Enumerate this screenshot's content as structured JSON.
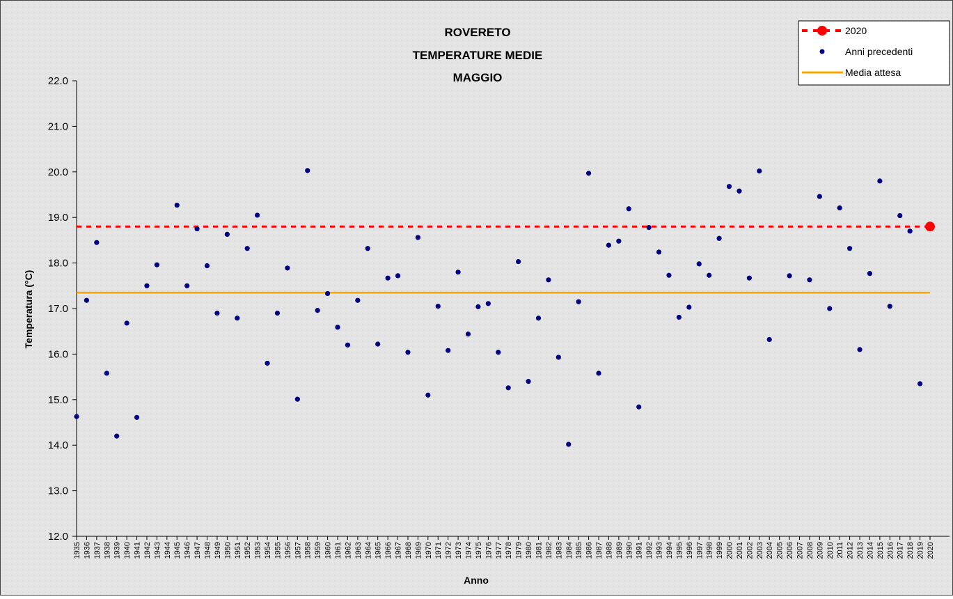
{
  "chart_data": {
    "type": "scatter",
    "title_lines": [
      "ROVERETO",
      "TEMPERATURE MEDIE",
      "MAGGIO"
    ],
    "xlabel": "Anno",
    "ylabel": "Temperatura (°C)",
    "ylim": [
      12.0,
      22.0
    ],
    "yticks": [
      "12.0",
      "13.0",
      "14.0",
      "15.0",
      "16.0",
      "17.0",
      "18.0",
      "19.0",
      "20.0",
      "21.0",
      "22.0"
    ],
    "legend_position": "top-right",
    "legend": {
      "current_label": "2020",
      "previous_label": "Anni precedenti",
      "mean_label": "Media attesa"
    },
    "colors": {
      "current": "#ff0000",
      "previous": "#000080",
      "mean": "#ffa500",
      "background": "#e6e6e6"
    },
    "current_value": 18.8,
    "mean_value": 17.35,
    "x": [
      1935,
      1936,
      1937,
      1938,
      1939,
      1940,
      1941,
      1942,
      1943,
      1944,
      1945,
      1946,
      1947,
      1948,
      1949,
      1950,
      1951,
      1952,
      1953,
      1954,
      1955,
      1956,
      1957,
      1958,
      1959,
      1960,
      1961,
      1962,
      1963,
      1964,
      1965,
      1966,
      1967,
      1968,
      1969,
      1970,
      1971,
      1972,
      1973,
      1974,
      1975,
      1976,
      1977,
      1978,
      1979,
      1980,
      1981,
      1982,
      1983,
      1984,
      1985,
      1986,
      1987,
      1988,
      1989,
      1990,
      1991,
      1992,
      1993,
      1994,
      1995,
      1996,
      1997,
      1998,
      1999,
      2000,
      2001,
      2002,
      2003,
      2004,
      2005,
      2006,
      2007,
      2008,
      2009,
      2010,
      2011,
      2012,
      2013,
      2014,
      2015,
      2016,
      2017,
      2018,
      2019,
      2020
    ],
    "series": [
      {
        "name": "Anni precedenti",
        "points": [
          [
            1935,
            14.63
          ],
          [
            1936,
            17.18
          ],
          [
            1937,
            18.45
          ],
          [
            1938,
            15.58
          ],
          [
            1939,
            14.2
          ],
          [
            1940,
            16.68
          ],
          [
            1941,
            14.61
          ],
          [
            1942,
            17.5
          ],
          [
            1943,
            17.96
          ],
          [
            1945,
            19.27
          ],
          [
            1946,
            17.5
          ],
          [
            1947,
            18.75
          ],
          [
            1948,
            17.94
          ],
          [
            1949,
            16.9
          ],
          [
            1950,
            18.63
          ],
          [
            1951,
            16.79
          ],
          [
            1952,
            18.32
          ],
          [
            1953,
            19.05
          ],
          [
            1954,
            15.8
          ],
          [
            1955,
            16.9
          ],
          [
            1956,
            17.89
          ],
          [
            1957,
            15.01
          ],
          [
            1958,
            20.03
          ],
          [
            1959,
            16.96
          ],
          [
            1960,
            17.33
          ],
          [
            1961,
            16.59
          ],
          [
            1962,
            16.2
          ],
          [
            1963,
            17.18
          ],
          [
            1964,
            18.32
          ],
          [
            1965,
            16.22
          ],
          [
            1966,
            17.67
          ],
          [
            1967,
            17.72
          ],
          [
            1968,
            16.04
          ],
          [
            1969,
            18.56
          ],
          [
            1970,
            15.1
          ],
          [
            1971,
            17.05
          ],
          [
            1972,
            16.08
          ],
          [
            1973,
            17.8
          ],
          [
            1974,
            16.44
          ],
          [
            1975,
            17.04
          ],
          [
            1976,
            17.11
          ],
          [
            1977,
            16.04
          ],
          [
            1978,
            15.26
          ],
          [
            1979,
            18.03
          ],
          [
            1980,
            15.4
          ],
          [
            1981,
            16.79
          ],
          [
            1982,
            17.63
          ],
          [
            1983,
            15.93
          ],
          [
            1984,
            14.02
          ],
          [
            1985,
            17.15
          ],
          [
            1986,
            19.97
          ],
          [
            1987,
            15.58
          ],
          [
            1988,
            18.39
          ],
          [
            1989,
            18.48
          ],
          [
            1990,
            19.19
          ],
          [
            1991,
            14.84
          ],
          [
            1992,
            18.78
          ],
          [
            1993,
            18.24
          ],
          [
            1994,
            17.73
          ],
          [
            1995,
            16.81
          ],
          [
            1996,
            17.03
          ],
          [
            1997,
            17.98
          ],
          [
            1998,
            17.73
          ],
          [
            1999,
            18.54
          ],
          [
            2000,
            19.68
          ],
          [
            2001,
            19.58
          ],
          [
            2002,
            17.67
          ],
          [
            2003,
            20.02
          ],
          [
            2004,
            16.32
          ],
          [
            2006,
            17.72
          ],
          [
            2008,
            17.63
          ],
          [
            2009,
            19.46
          ],
          [
            2010,
            17.0
          ],
          [
            2011,
            19.21
          ],
          [
            2012,
            18.32
          ],
          [
            2013,
            16.1
          ],
          [
            2014,
            17.77
          ],
          [
            2015,
            19.8
          ],
          [
            2016,
            17.05
          ],
          [
            2017,
            19.04
          ],
          [
            2018,
            18.7
          ],
          [
            2019,
            15.35
          ]
        ]
      }
    ]
  }
}
